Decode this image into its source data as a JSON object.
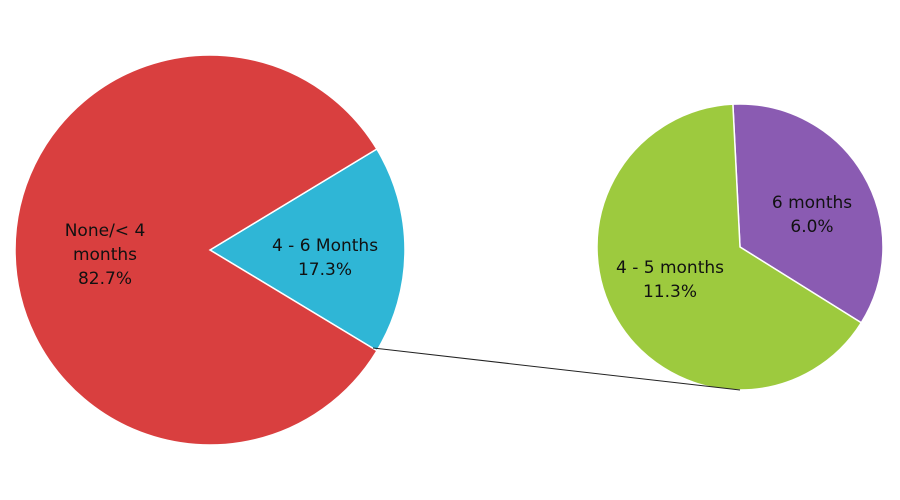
{
  "chart_data": [
    {
      "type": "pie",
      "categories": [
        "None/< 4 months",
        "4 - 6 Months"
      ],
      "values": [
        82.7,
        17.3
      ],
      "value_labels": [
        "82.7%",
        "17.3%"
      ],
      "colors": [
        "#d93f3f",
        "#2fb6d6"
      ]
    },
    {
      "type": "pie",
      "categories": [
        "4 - 5 months",
        "6 months"
      ],
      "values": [
        11.3,
        6.0
      ],
      "value_labels": [
        "11.3%",
        "6.0%"
      ],
      "colors": [
        "#9dca3e",
        "#8a5bb2"
      ]
    }
  ]
}
